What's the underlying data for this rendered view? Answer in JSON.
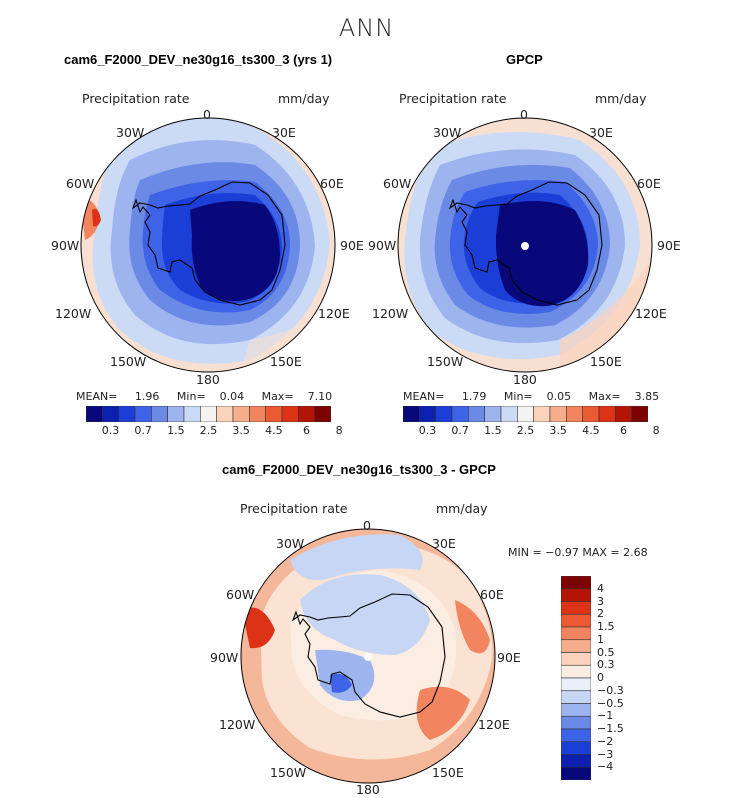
{
  "season": "ANN",
  "panels": [
    {
      "title": "cam6_F2000_DEV_ne30g16_ts300_3 (yrs 1)",
      "variable_label": "Precipitation rate",
      "units_label": "mm/day",
      "stats": {
        "mean_label": "MEAN=",
        "mean": "1.96",
        "min_label": "Min=",
        "min": "0.04",
        "max_label": "Max=",
        "max": "7.10"
      }
    },
    {
      "title": "GPCP",
      "variable_label": "Precipitation rate",
      "units_label": "mm/day",
      "stats": {
        "mean_label": "MEAN=",
        "mean": "1.79",
        "min_label": "Min=",
        "min": "0.05",
        "max_label": "Max=",
        "max": "3.85"
      }
    },
    {
      "title": "cam6_F2000_DEV_ne30g16_ts300_3 - GPCP",
      "variable_label": "Precipitation rate",
      "units_label": "mm/day",
      "stats_text": "MIN =  −0.97 MAX =    2.68"
    }
  ],
  "longitude_labels": [
    "0",
    "30E",
    "60E",
    "90E",
    "120E",
    "150E",
    "180",
    "150W",
    "120W",
    "90W",
    "60W",
    "30W"
  ],
  "colorbar_abs": {
    "tick_labels": [
      "0.3",
      "0.7",
      "1.5",
      "2.5",
      "3.5",
      "4.5",
      "6",
      "8"
    ],
    "colors": [
      "#08087a",
      "#0b1fb0",
      "#1b3fd6",
      "#3f63e6",
      "#6a8ae6",
      "#9db4ee",
      "#cbdaf5",
      "#f5f3f0",
      "#fbd3bd",
      "#f6ad8b",
      "#f28560",
      "#ec5a33",
      "#dc3216",
      "#b41405",
      "#7d0303"
    ]
  },
  "colorbar_diff": {
    "tick_labels": [
      "4",
      "3",
      "2",
      "1.5",
      "1",
      "0.5",
      "0.3",
      "0",
      "−0.3",
      "−0.5",
      "−1",
      "−1.5",
      "−2",
      "−3",
      "−4"
    ],
    "colors": [
      "#7d0303",
      "#b41405",
      "#dc3216",
      "#ec5a33",
      "#f28560",
      "#f6ad8b",
      "#fbd3bd",
      "#fbede2",
      "#eaf0fa",
      "#c6d6f4",
      "#9db4ee",
      "#6a8ae6",
      "#3f63e6",
      "#1b3fd6",
      "#0b1fb0",
      "#08087a"
    ]
  },
  "chart_data": [
    {
      "type": "heatmap",
      "projection": "south-polar-stereographic",
      "title": "cam6_F2000_DEV_ne30g16_ts300_3 (yrs 1)",
      "variable": "Precipitation rate",
      "units": "mm/day",
      "mean": 1.96,
      "min": 0.04,
      "max": 7.1,
      "levels": [
        0.3,
        0.5,
        0.7,
        1.0,
        1.5,
        2.0,
        2.5,
        3.0,
        3.5,
        4.0,
        4.5,
        5,
        6,
        7,
        8
      ]
    },
    {
      "type": "heatmap",
      "projection": "south-polar-stereographic",
      "title": "GPCP",
      "variable": "Precipitation rate",
      "units": "mm/day",
      "mean": 1.79,
      "min": 0.05,
      "max": 3.85,
      "levels": [
        0.3,
        0.5,
        0.7,
        1.0,
        1.5,
        2.0,
        2.5,
        3.0,
        3.5,
        4.0,
        4.5,
        5,
        6,
        7,
        8
      ]
    },
    {
      "type": "heatmap",
      "projection": "south-polar-stereographic",
      "title": "cam6_F2000_DEV_ne30g16_ts300_3 - GPCP",
      "variable": "Precipitation rate",
      "units": "mm/day",
      "min": -0.97,
      "max": 2.68,
      "levels": [
        -4,
        -3,
        -2,
        -1.5,
        -1,
        -0.5,
        -0.3,
        0,
        0.3,
        0.5,
        1,
        1.5,
        2,
        3,
        4
      ]
    }
  ]
}
